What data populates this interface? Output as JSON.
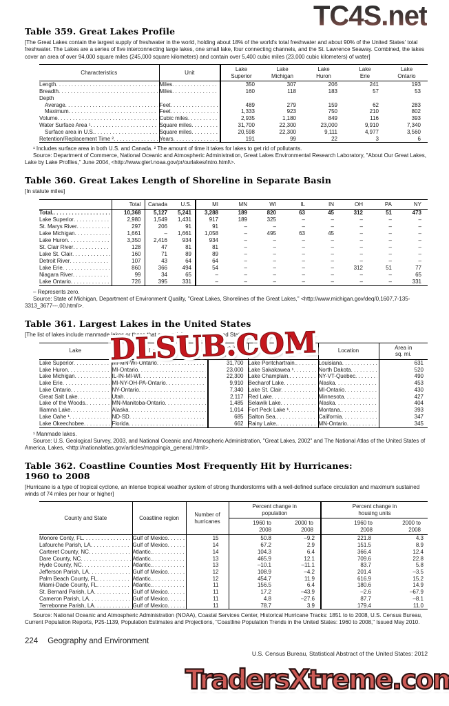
{
  "watermarks": {
    "top": "TC4S.net",
    "middle": "DLSUB.COM",
    "bottom": "TradersXtreme.com",
    "red": "#c5161d",
    "salmon": "#cd5a55"
  },
  "table359": {
    "title": "Table 359. Great Lakes Profile",
    "note": "[The Great Lakes contain the largest supply of freshwater in the world, holding about 18% of the world's total freshwater and about 90% of the United States' total freshwater. The Lakes are a series of five interconnecting large lakes, one small lake, four connecting channels, and the St. Lawrence Seaway. Combined, the lakes cover an area of over 94,000 square miles (245,000 square kilometers) and contain over 5,400 cubic miles (23,000 cubic kilometers) of water]",
    "headers": {
      "stub": "Characteristics",
      "unit": "Unit"
    },
    "lake_headers": [
      [
        "Lake",
        "Superior"
      ],
      [
        "Lake",
        "Michigan"
      ],
      [
        "Lake",
        "Huron"
      ],
      [
        "Lake",
        "Erie"
      ],
      [
        "Lake",
        "Ontario"
      ]
    ],
    "rows": [
      {
        "label": "Length",
        "indent": 0,
        "unit": "Miles",
        "values": [
          "350",
          "307",
          "206",
          "241",
          "193"
        ]
      },
      {
        "label": "Breadth",
        "indent": 0,
        "unit": "Miles",
        "values": [
          "160",
          "118",
          "183",
          "57",
          "53"
        ]
      },
      {
        "label": "Depth",
        "indent": 0,
        "leaders": false,
        "unit": "",
        "values": [
          "",
          "",
          "",
          "",
          ""
        ]
      },
      {
        "label": "Average",
        "indent": 1,
        "unit": "Feet",
        "values": [
          "489",
          "279",
          "159",
          "62",
          "283"
        ]
      },
      {
        "label": "Maximum",
        "indent": 1,
        "unit": "Feet",
        "values": [
          "1,333",
          "923",
          "750",
          "210",
          "802"
        ]
      },
      {
        "label": "Volume",
        "indent": 0,
        "unit": "Cubic miles",
        "values": [
          "2,935",
          "1,180",
          "849",
          "116",
          "393"
        ]
      },
      {
        "label": "Water Surface Area ¹",
        "indent": 0,
        "unit": "Square miles",
        "values": [
          "31,700",
          "22,300",
          "23,000",
          "9,910",
          "7,340"
        ]
      },
      {
        "label": "Surface area in U.S.",
        "indent": 1,
        "unit": "Square miles",
        "values": [
          "20,598",
          "22,300",
          "9,111",
          "4,977",
          "3,560"
        ]
      },
      {
        "label": "Retention/Replacement Time ²",
        "indent": 0,
        "unit": "Years",
        "values": [
          "191",
          "99",
          "22",
          "3",
          "6"
        ]
      }
    ],
    "footnotes": "¹ Includes surface area in both U.S. and Canada. ² The amount of time it takes for lakes to get rid of pollutants.",
    "source": "Source: Department of Commerce, National Oceanic and Atmospheric Administration, Great Lakes Environmental Research Laboratory, \"About Our Great Lakes, Lake by Lake Profiles,\" June 2004, <http://www.glerl.noaa.gov/pr/ourlakes/intro.html\\>."
  },
  "table360": {
    "title": "Table 360. Great Lakes Length of Shoreline in Separate Basin",
    "note": "[In statute miles]",
    "headers": [
      "Total",
      "Canada",
      "U.S.",
      "MI",
      "MN",
      "WI",
      "IL",
      "IN",
      "OH",
      "PA",
      "NY"
    ],
    "rows": [
      {
        "label": "Total.",
        "bold": true,
        "values": [
          "10,368",
          "5,127",
          "5,241",
          "3,288",
          "189",
          "820",
          "63",
          "45",
          "312",
          "51",
          "473"
        ]
      },
      {
        "label": "Lake Superior",
        "values": [
          "2,980",
          "1,549",
          "1,431",
          "917",
          "189",
          "325",
          "–",
          "–",
          "–",
          "–",
          "–"
        ]
      },
      {
        "label": "St. Marys River",
        "values": [
          "297",
          "206",
          "91",
          "91",
          "–",
          "–",
          "–",
          "–",
          "–",
          "–",
          "–"
        ]
      },
      {
        "label": "Lake Michigan",
        "values": [
          "1,661",
          "–",
          "1,661",
          "1,058",
          "–",
          "495",
          "63",
          "45",
          "–",
          "–",
          "–"
        ]
      },
      {
        "label": "Lake Huron",
        "values": [
          "3,350",
          "2,416",
          "934",
          "934",
          "–",
          "–",
          "–",
          "–",
          "–",
          "–",
          "–"
        ]
      },
      {
        "label": "St. Clair River",
        "values": [
          "128",
          "47",
          "81",
          "81",
          "–",
          "–",
          "–",
          "–",
          "–",
          "–",
          "–"
        ]
      },
      {
        "label": "Lake St. Clair",
        "values": [
          "160",
          "71",
          "89",
          "89",
          "–",
          "–",
          "–",
          "–",
          "–",
          "–",
          "–"
        ]
      },
      {
        "label": "Detroit River",
        "values": [
          "107",
          "43",
          "64",
          "64",
          "–",
          "–",
          "–",
          "–",
          "–",
          "–",
          "–"
        ]
      },
      {
        "label": "Lake Erie",
        "values": [
          "860",
          "366",
          "494",
          "54",
          "–",
          "–",
          "–",
          "–",
          "312",
          "51",
          "77"
        ]
      },
      {
        "label": "Niagara River",
        "values": [
          "99",
          "34",
          "65",
          "–",
          "–",
          "–",
          "–",
          "–",
          "–",
          "–",
          "65"
        ]
      },
      {
        "label": "Lake Ontario",
        "values": [
          "726",
          "395",
          "331",
          "–",
          "–",
          "–",
          "–",
          "–",
          "–",
          "–",
          "331"
        ]
      }
    ],
    "footnote": "– Represents zero.",
    "source": "Source: State of Michigan, Department of Environment Quality, \"Great Lakes, Shorelines of the Great Lakes,\" <http://www.michigan.gov/deq/0,1607,7-135-3313_3677---,00.html\\>."
  },
  "table361": {
    "title": "Table 361. Largest Lakes in the United States",
    "note": "[The list of lakes include manmade lakes or those that are partially within the United States]",
    "headers": {
      "lake": "Lake",
      "location": "Location",
      "area": [
        "Area in",
        "sq. mi."
      ]
    },
    "rows": [
      {
        "cells": [
          "Lake Superior",
          "MI-MN-WI-Ontario",
          "31,700",
          "Lake Pontchartrain.",
          "Louisiana",
          "631"
        ]
      },
      {
        "cells": [
          "Lake Huron",
          "MI-Ontario",
          "23,000",
          "Lake Sakakawea ¹",
          "North Dakota",
          "520"
        ]
      },
      {
        "cells": [
          "Lake Michigan",
          "IL-IN-MI-WI",
          "22,300",
          "Lake Champlain.",
          "NY-VT-Quebec",
          "490"
        ]
      },
      {
        "cells": [
          "Lake Erie",
          "MI-NY-OH-PA-Ontario",
          "9,910",
          "Becharof Lake",
          "Alaska",
          "453"
        ]
      },
      {
        "cells": [
          "Lake Ontario",
          "NY-Ontario",
          "7,340",
          "Lake St. Clair",
          "MI-Ontario",
          "430"
        ]
      },
      {
        "cells": [
          "Great Salt Lake",
          "Utah",
          "2,117",
          "Red Lake",
          "Minnesota",
          "427"
        ]
      },
      {
        "cells": [
          "Lake of the Woods.",
          "MN-Manitoba-Ontario",
          "1,485",
          "Selawik Lake",
          "Alaska",
          "404"
        ]
      },
      {
        "cells": [
          "Iliamna Lake",
          "Alaska",
          "1,014",
          "Fort Peck Lake ¹",
          "Montana.",
          "393"
        ]
      },
      {
        "cells": [
          "Lake Oahe ¹",
          "ND-SD",
          "685",
          "Salton Sea.",
          "California",
          "347"
        ]
      },
      {
        "cells": [
          "Lake Okeechobee",
          "Florida",
          "662",
          "Rainy Lake.",
          "MN-Ontario",
          "345"
        ]
      }
    ],
    "footnote": "¹ Manmade lakes.",
    "source": "Source: U.S. Geological Survey, 2003, and National Oceanic and Atmospheric Administration, \"Great Lakes, 2002\" and The National Atlas of the United States of America, Lakes, <http://nationalatlas.gov/articles/mapping/a_general.html\\>."
  },
  "table362": {
    "title_line1": "Table 362. Coastline Counties Most Frequently Hit by Hurricanes:",
    "title_line2": "1960 to 2008",
    "note": "[Hurricane is a type of tropical cyclone, an intense tropical weather system of strong thunderstorms with a well-defined surface circulation and maximum sustained winds of 74 miles per hour or higher]",
    "headers": {
      "county": "County and State",
      "region": "Coastline region",
      "number": [
        "Number of",
        "hurricanes"
      ],
      "group_population": [
        "Percent change in",
        "population"
      ],
      "group_housing": [
        "Percent change in",
        "housing units"
      ],
      "sub": [
        [
          "1960 to",
          "2008"
        ],
        [
          "2000 to",
          "2008"
        ],
        [
          "1960 to",
          "2008"
        ],
        [
          "2000 to",
          "2008"
        ]
      ]
    },
    "rows": [
      {
        "cells": [
          "Monore Conty, FL",
          "Gulf of Mexico",
          "15",
          "50.8",
          "–9.2",
          "221.8",
          "4.3"
        ]
      },
      {
        "cells": [
          "Lafourche Parish, LA",
          "Gulf of Mexico",
          "14",
          "67.2",
          "2.9",
          "151.5",
          "8.9"
        ]
      },
      {
        "cells": [
          "Carteret County, NC",
          "Atlantic.",
          "14",
          "104.3",
          "6.4",
          "366.4",
          "12.4"
        ]
      },
      {
        "cells": [
          "Dare County, NC",
          "Atlantic.",
          "13",
          "465.9",
          "12.1",
          "709.6",
          "22.8"
        ]
      },
      {
        "cells": [
          "Hyde County, NC",
          "Atlantic.",
          "13",
          "–10.1",
          "–11.1",
          "83.7",
          "5.8"
        ]
      },
      {
        "cells": [
          "Jefferson Parish, LA",
          "Gulf of Mexico",
          "12",
          "108.9",
          "–4.2",
          "201.4",
          "–3.5"
        ]
      },
      {
        "cells": [
          "Palm Beach County, FL",
          "Atlantic.",
          "12",
          "454.7",
          "11.9",
          "616.9",
          "15.2"
        ]
      },
      {
        "cells": [
          "Miami-Dade County, FL",
          "Atlantic.",
          "11",
          "156.5",
          "6.4",
          "180.6",
          "14.9"
        ]
      },
      {
        "cells": [
          "St. Bernard Parish, LA",
          "Gulf of Mexico",
          "11",
          "17.2",
          "–43.9",
          "–2.6",
          "–67.9"
        ]
      },
      {
        "cells": [
          "Cameron Parish, LA",
          "Gulf of Mexico",
          "11",
          "4.8",
          "–27.6",
          "87.7",
          "–8.1"
        ]
      },
      {
        "cells": [
          "Terrebonne Parish, LA",
          "Gulf of Mexico",
          "11",
          "78.7",
          "3.9",
          "179.4",
          "11.0"
        ]
      }
    ],
    "source": "Source: National Oceanic and Atmospheric Administration (NOAA), Coastal Services Center, Historical Hurricane Tracks: 1851 to to 2008, U.S. Census Bureau, Current Population Reports, P25-1139, Population Estimates and Projections, \"Coastline Population Trends in the United States: 1960 to 2008,\" Issued May 2010.",
    "negative_color": "#191919"
  },
  "footer": {
    "page": "224",
    "section": "Geography and Environment",
    "right": "U.S. Census Bureau, Statistical Abstract of the United States: 2012"
  }
}
